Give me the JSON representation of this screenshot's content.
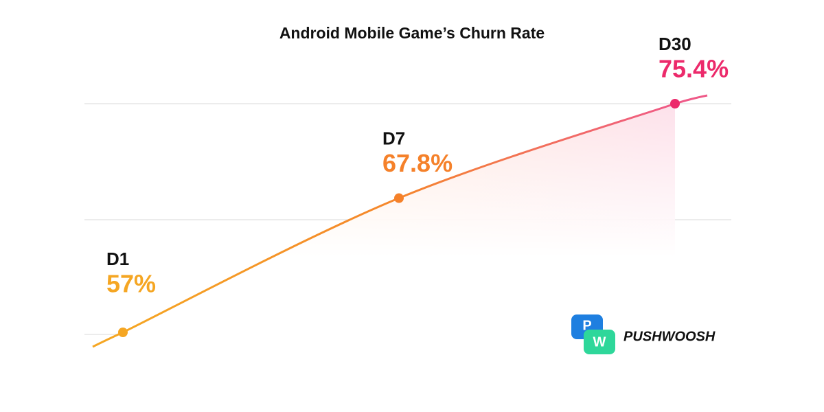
{
  "chart_data": {
    "type": "line",
    "title": "Android Mobile Game’s Churn Rate",
    "categories": [
      "D1",
      "D7",
      "D30"
    ],
    "values": [
      57,
      67.8,
      75.4
    ],
    "value_labels": [
      "57%",
      "67.8%",
      "75.4%"
    ],
    "colors": [
      "#f5a623",
      "#f5812a",
      "#ec2a6b"
    ]
  },
  "brand": "PUSHWOOSH",
  "brand_icon": [
    "P",
    "W"
  ]
}
